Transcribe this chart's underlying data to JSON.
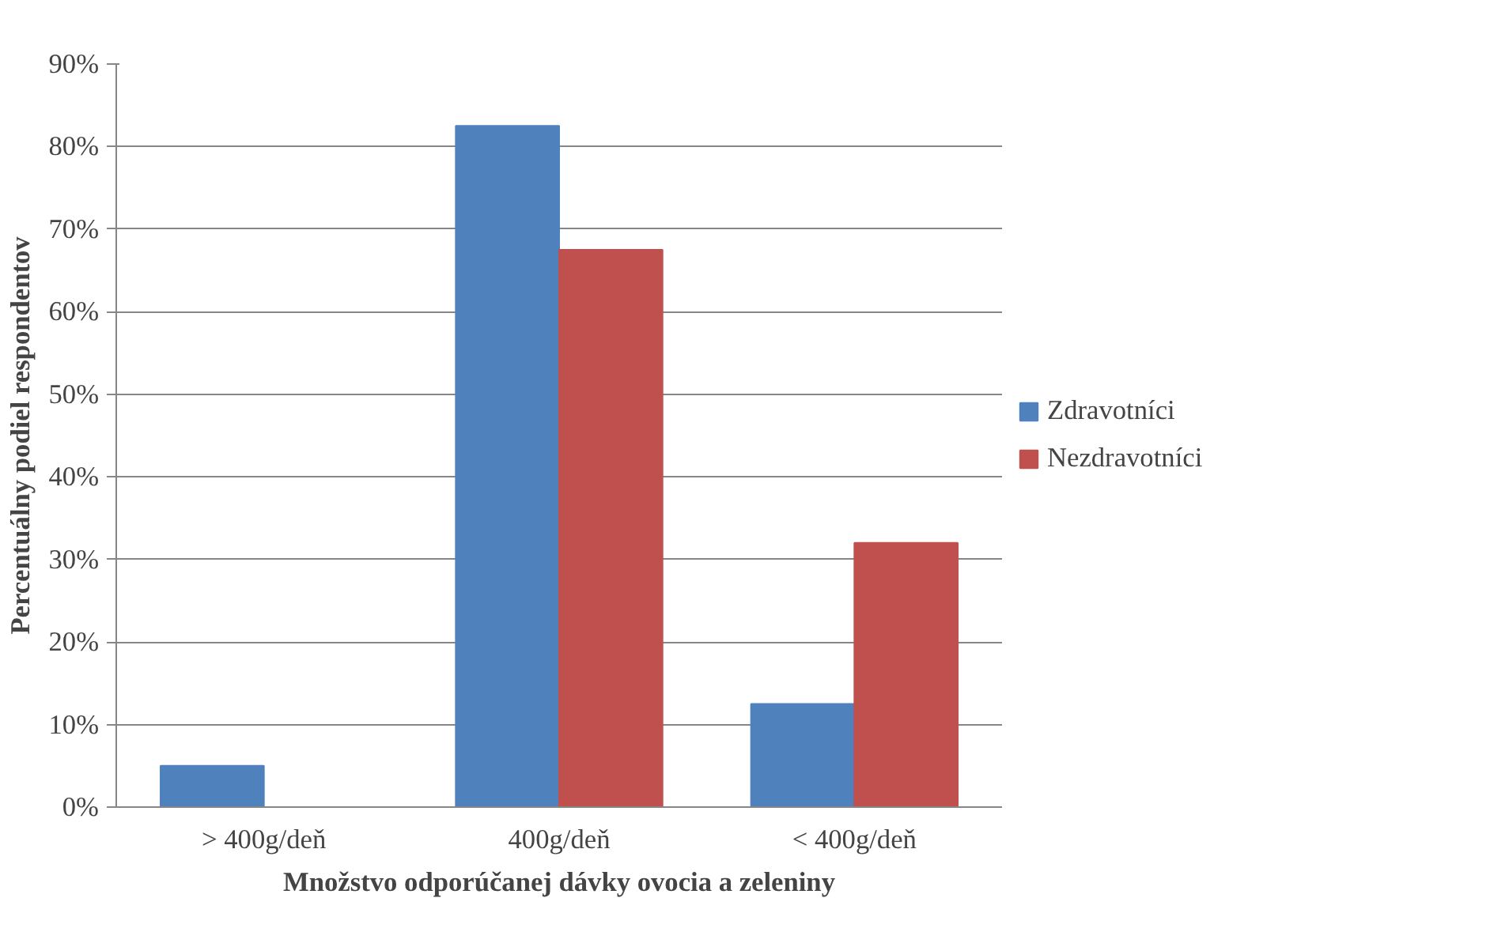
{
  "chart_data": {
    "type": "bar",
    "xlabel": "Množstvo odporúčanej dávky ovocia a zeleniny",
    "ylabel": "Percentuálny podiel respondentov",
    "categories": [
      "> 400g/deň",
      "400g/deň",
      "< 400g/deň"
    ],
    "series": [
      {
        "name": "Zdravotníci",
        "color": "#4f81bd",
        "values": [
          5,
          82.5,
          12.5
        ]
      },
      {
        "name": "Nezdravotníci",
        "color": "#c0504d",
        "values": [
          0,
          67.5,
          32
        ]
      }
    ],
    "ylim": [
      0,
      90
    ],
    "yticks": [
      {
        "value": 0,
        "label": "0%"
      },
      {
        "value": 10,
        "label": "10%"
      },
      {
        "value": 20,
        "label": "20%"
      },
      {
        "value": 30,
        "label": "30%"
      },
      {
        "value": 40,
        "label": "40%"
      },
      {
        "value": 50,
        "label": "50%"
      },
      {
        "value": 60,
        "label": "60%"
      },
      {
        "value": 70,
        "label": "70%"
      },
      {
        "value": 80,
        "label": "80%"
      },
      {
        "value": 90,
        "label": "90%"
      }
    ],
    "grid": "y",
    "legend": "right"
  }
}
